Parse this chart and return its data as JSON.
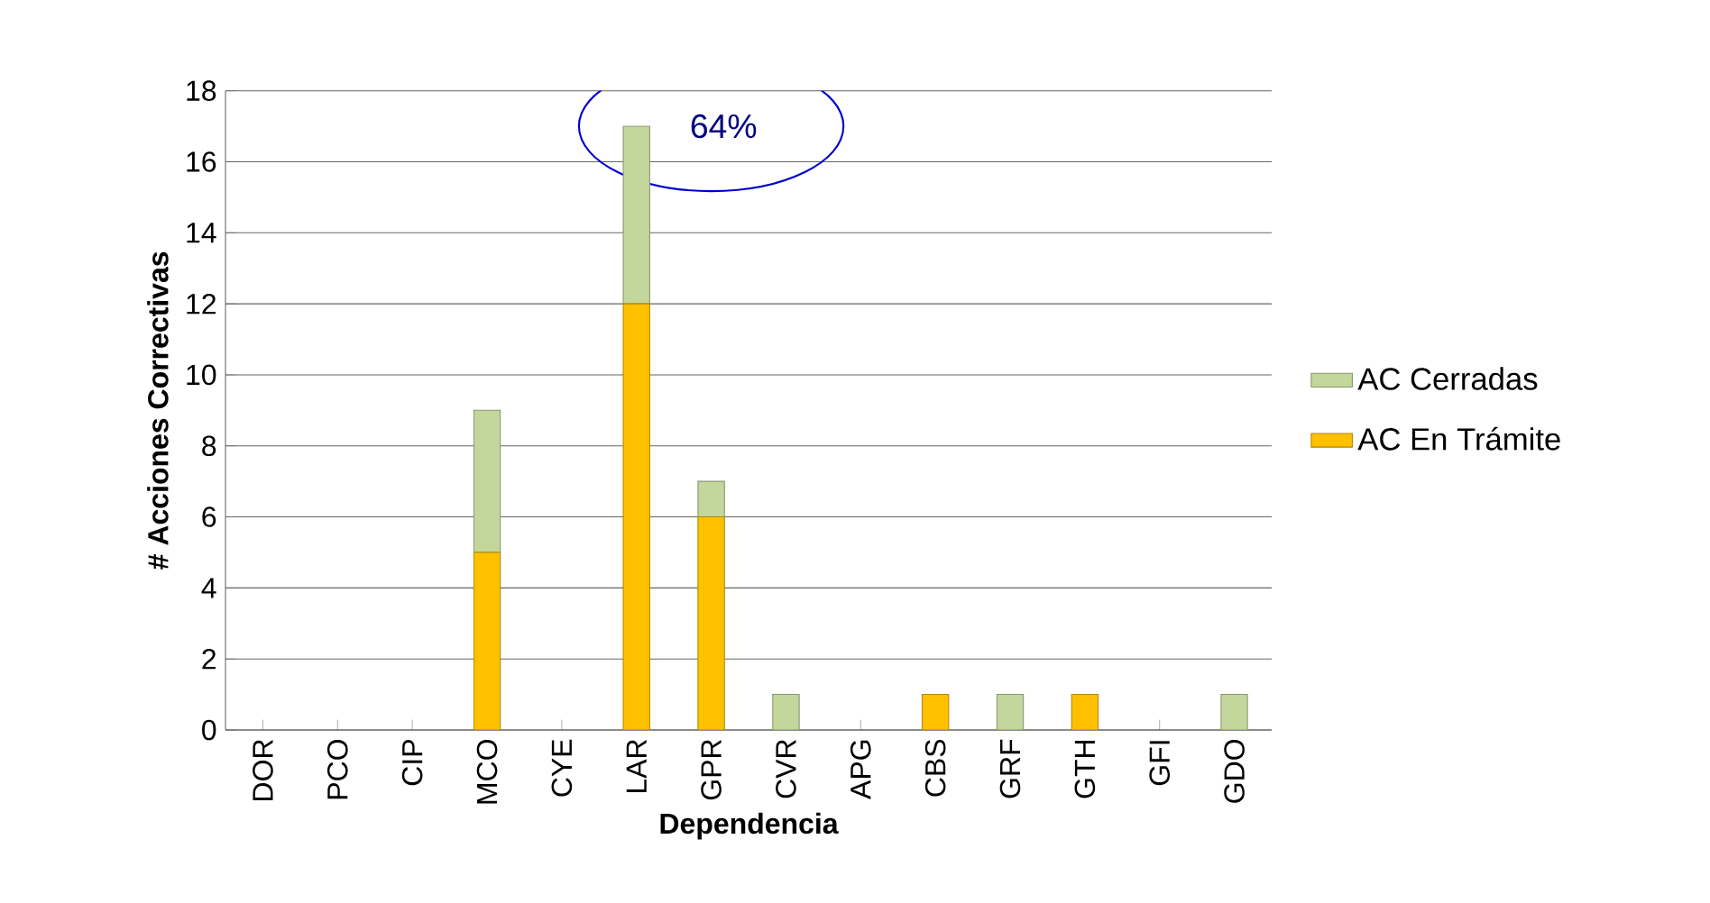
{
  "chart_data": {
    "type": "bar",
    "stacked": true,
    "xlabel": "Dependencia",
    "ylabel": "# Acciones Correctivas",
    "categories": [
      "DOR",
      "PCO",
      "CIP",
      "MCO",
      "CYE",
      "LAR",
      "GPR",
      "CVR",
      "APG",
      "CBS",
      "GRF",
      "GTH",
      "GFI",
      "GDO"
    ],
    "series": [
      {
        "name": "AC En Trámite",
        "color": "#ffc000",
        "values": [
          0,
          0,
          0,
          5,
          0,
          12,
          6,
          0,
          0,
          1,
          0,
          1,
          0,
          0
        ]
      },
      {
        "name": "AC Cerradas",
        "color": "#c3d69b",
        "values": [
          0,
          0,
          0,
          4,
          0,
          5,
          1,
          1,
          0,
          0,
          1,
          0,
          0,
          1
        ]
      }
    ],
    "ylim": [
      0,
      18
    ],
    "yticks": [
      0,
      2,
      4,
      6,
      8,
      10,
      12,
      14,
      16,
      18
    ],
    "grid": "y",
    "legend": "right",
    "annotations": [
      {
        "text": "64%",
        "x": "LAR",
        "y": 17
      }
    ]
  }
}
